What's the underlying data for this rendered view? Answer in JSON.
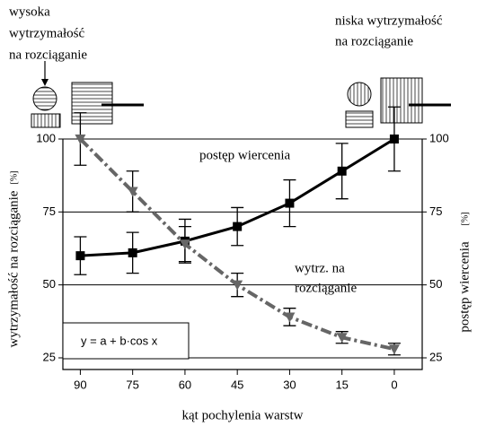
{
  "chart_data": {
    "type": "line",
    "x_label": "kąt pochylenia warstw",
    "y_label": "wytrzymałość na rozciąganie",
    "y_unit": "[%]",
    "y2_label": "postęp wiercenia",
    "y2_unit": "[%]",
    "x": [
      90,
      75,
      60,
      45,
      30,
      15,
      0
    ],
    "series": [
      {
        "name": "postęp wiercenia",
        "color": "#000000",
        "marker": "square",
        "dash": "solid",
        "axis": "y2",
        "values": [
          60,
          61,
          65,
          70,
          78,
          89,
          100
        ],
        "errors": [
          6.5,
          7,
          7.5,
          6.5,
          8,
          9.5,
          11
        ]
      },
      {
        "color": "#666666",
        "marker": "triangle-down",
        "dash": "dashdot",
        "values": [
          100,
          82,
          64,
          50,
          39,
          32,
          28
        ],
        "errors": [
          9,
          7,
          6,
          4,
          3,
          2,
          2
        ]
      }
    ],
    "xlim": [
      95,
      -8
    ],
    "xticks": [
      90,
      75,
      60,
      45,
      30,
      15,
      0
    ],
    "ylim": [
      21,
      100
    ],
    "yticks": [
      25,
      50,
      75,
      100
    ],
    "y2lim": [
      21,
      100
    ],
    "y2ticks": [
      25,
      50,
      75,
      100
    ],
    "grid": true,
    "annotations": [
      "wytrz. na",
      "rozciąganie"
    ],
    "formula": "y = a + b·cos x",
    "header_left": [
      "wysoka",
      "wytrzymałość",
      "na rozciąganie"
    ],
    "header_right": [
      "niska wytrzymałość",
      "na rozciąganie"
    ]
  }
}
